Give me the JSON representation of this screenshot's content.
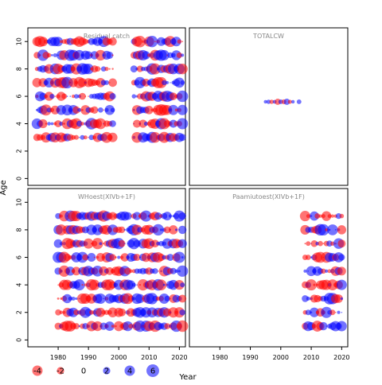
{
  "figure": {
    "xlabel": "Year",
    "ylabel": "Age",
    "positive_color": "#0000FF",
    "negative_color": "#FF0000",
    "point_opacity": 0.55,
    "x_ticks": [
      1980,
      1990,
      2000,
      2010,
      2020
    ],
    "y_ticks": [
      0,
      2,
      4,
      6,
      8,
      10
    ],
    "size_legend": [
      {
        "label": "-4",
        "value": -4
      },
      {
        "label": "-2",
        "value": -2
      },
      {
        "label": "0",
        "value": 0
      },
      {
        "label": "2",
        "value": 2
      },
      {
        "label": "4",
        "value": 4
      },
      {
        "label": "6",
        "value": 6
      }
    ]
  },
  "chart_data": [
    {
      "type": "scatter",
      "title": "Residual catch",
      "xlim": [
        1970,
        2022
      ],
      "ylim": [
        -0.5,
        11
      ],
      "ages": [
        3,
        4,
        5,
        6,
        7,
        8,
        9,
        10
      ],
      "years": [
        1973,
        2021
      ],
      "gap_years": [
        1999,
        2004
      ],
      "seed": 11
    },
    {
      "type": "scatter",
      "title": "TOTALCW",
      "xlim": [
        1970,
        2022
      ],
      "ylim": [
        -0.5,
        11
      ],
      "points": [
        {
          "x": 1995,
          "y": 5.6,
          "v": 0.5
        },
        {
          "x": 1996,
          "y": 5.6,
          "v": 0.8
        },
        {
          "x": 1997,
          "y": 5.6,
          "v": -0.8
        },
        {
          "x": 1998,
          "y": 5.6,
          "v": 0.6
        },
        {
          "x": 1999,
          "y": 5.6,
          "v": -1.6
        },
        {
          "x": 2000,
          "y": 5.6,
          "v": 0.9
        },
        {
          "x": 2001,
          "y": 5.6,
          "v": -1.0
        },
        {
          "x": 2002,
          "y": 5.6,
          "v": 1.6
        },
        {
          "x": 2003,
          "y": 5.6,
          "v": -0.7
        },
        {
          "x": 2004,
          "y": 5.6,
          "v": 0.5
        },
        {
          "x": 2006,
          "y": 5.6,
          "v": 0.9
        }
      ]
    },
    {
      "type": "scatter",
      "title": "WHoest(XIVb+1F)",
      "xlim": [
        1970,
        2022
      ],
      "ylim": [
        -0.5,
        11
      ],
      "ages": [
        1,
        2,
        3,
        4,
        5,
        6,
        7,
        8,
        9
      ],
      "years": [
        1980,
        2021
      ],
      "gap_years": [],
      "seed": 37
    },
    {
      "type": "scatter",
      "title": "Paamiutoest(XIVb+1F)",
      "xlim": [
        1970,
        2022
      ],
      "ylim": [
        -0.5,
        11
      ],
      "ages": [
        1,
        2,
        3,
        4,
        5,
        6,
        7,
        8,
        9
      ],
      "years": [
        2008,
        2020
      ],
      "gap_years": [],
      "seed": 73
    }
  ]
}
